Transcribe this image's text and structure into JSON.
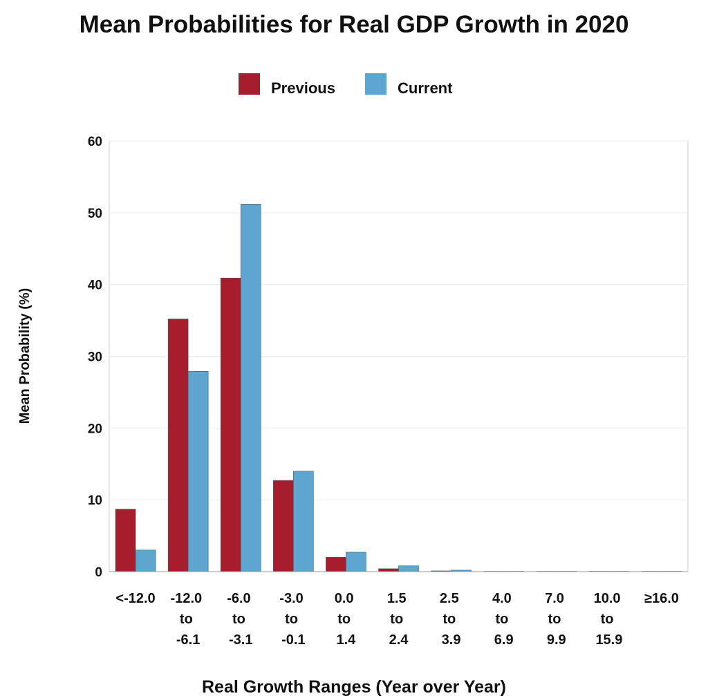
{
  "chart_data": {
    "type": "bar",
    "title": "Mean Probabilities for Real GDP Growth in 2020",
    "x_label": "Real Growth Ranges (Year over Year)",
    "y_label": "Mean Probability (%)",
    "categories": [
      "<-12.0",
      "-12.0 to -6.1",
      "-6.0 to -3.1",
      "-3.0 to -0.1",
      "0.0 to 1.4",
      "1.5 to 2.4",
      "2.5 to 3.9",
      "4.0 to 6.9",
      "7.0 to 9.9",
      "10.0 to 15.9",
      "≥16.0"
    ],
    "series": [
      {
        "name": "Previous",
        "color": "#a61d2d",
        "values": [
          8.7,
          35.2,
          40.9,
          12.7,
          2.0,
          0.4,
          0.1,
          0.05,
          0.05,
          0.05,
          0.05
        ]
      },
      {
        "name": "Current",
        "color": "#5ea5cf",
        "values": [
          3.0,
          27.9,
          51.2,
          14.0,
          2.7,
          0.8,
          0.2,
          0.05,
          0.05,
          0.05,
          0.05
        ]
      }
    ],
    "ylim": [
      0,
      60
    ],
    "yticks": [
      0,
      10,
      20,
      30,
      40,
      50,
      60
    ],
    "grid": true
  }
}
